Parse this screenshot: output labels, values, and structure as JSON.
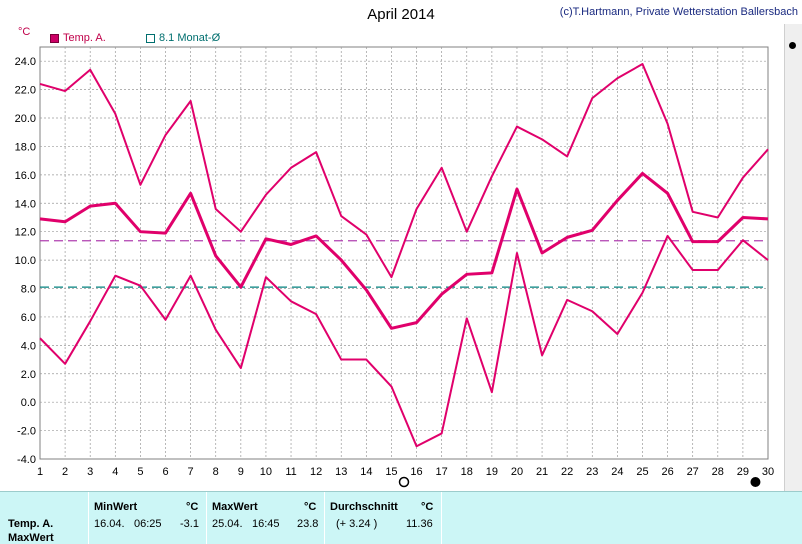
{
  "header": {
    "title": "April 2014",
    "credit": "(c)T.Hartmann, Private Wetterstation Ballersbach",
    "unit": "°C"
  },
  "legend": {
    "temp_label": "Temp. A.",
    "monthly_avg_label": "8.1 Monat-Ø"
  },
  "colors": {
    "temp": "#e0006b",
    "avg_line": "#b040b0",
    "monthly_line": "#00807e",
    "grid": "#9a9a9a"
  },
  "chart_data": {
    "type": "line",
    "title": "April 2014",
    "ylabel": "°C",
    "ylim": [
      -4.0,
      25.0
    ],
    "yticks": [
      -4.0,
      -2.0,
      0.0,
      2.0,
      4.0,
      6.0,
      8.0,
      10.0,
      12.0,
      14.0,
      16.0,
      18.0,
      20.0,
      22.0,
      24.0
    ],
    "xlim": [
      1,
      30
    ],
    "x": [
      1,
      2,
      3,
      4,
      5,
      6,
      7,
      8,
      9,
      10,
      11,
      12,
      13,
      14,
      15,
      16,
      17,
      18,
      19,
      20,
      21,
      22,
      23,
      24,
      25,
      26,
      27,
      28,
      29,
      30
    ],
    "series": [
      {
        "name": "Temp. A.",
        "style": "max",
        "values": [
          22.4,
          21.9,
          23.4,
          20.3,
          15.3,
          18.8,
          21.2,
          13.6,
          12.0,
          14.6,
          16.5,
          17.6,
          13.1,
          11.8,
          8.8,
          13.6,
          16.5,
          12.0,
          15.9,
          19.4,
          18.5,
          17.3,
          21.4,
          22.8,
          23.8,
          19.6,
          13.4,
          13.0,
          15.8,
          17.8
        ]
      },
      {
        "name": "Temp. A.",
        "style": "mean",
        "values": [
          12.9,
          12.7,
          13.8,
          14.0,
          12.0,
          11.9,
          14.7,
          10.3,
          8.1,
          11.5,
          11.1,
          11.7,
          10.0,
          7.9,
          5.2,
          5.6,
          7.6,
          9.0,
          9.1,
          15.0,
          10.5,
          11.6,
          12.1,
          14.2,
          16.1,
          14.7,
          11.3,
          11.3,
          13.0,
          12.9
        ]
      },
      {
        "name": "Temp. A.",
        "style": "min",
        "values": [
          4.5,
          2.7,
          5.7,
          8.9,
          8.2,
          5.8,
          8.9,
          5.1,
          2.4,
          8.8,
          7.1,
          6.2,
          3.0,
          3.0,
          1.1,
          -3.1,
          -2.2,
          5.9,
          0.7,
          10.5,
          3.3,
          7.2,
          6.4,
          4.8,
          7.7,
          11.7,
          9.3,
          9.3,
          11.4,
          10.0
        ]
      }
    ],
    "reference_lines": [
      {
        "name": "Temp. A. average",
        "value": 11.36
      },
      {
        "name": "8.1 Monat-Ø",
        "value": 8.1
      }
    ],
    "markers": [
      {
        "x": 15.5,
        "shape": "open-circle"
      },
      {
        "x": 29.5,
        "shape": "filled-circle"
      }
    ],
    "grid": true,
    "legend_position": "top-left"
  },
  "stats": {
    "row_label": "Temp. A.",
    "row_label2": "MaxWert",
    "min_header": "MinWert",
    "max_header": "MaxWert",
    "avg_header": "Durchschnitt",
    "unit": "°C",
    "min_date": "16.04.",
    "min_time": "06:25",
    "min_value": "-3.1",
    "max_date": "25.04.",
    "max_time": "16:45",
    "max_value": "23.8",
    "avg_delta": "(+ 3.24 )",
    "avg_value": "11.36"
  }
}
